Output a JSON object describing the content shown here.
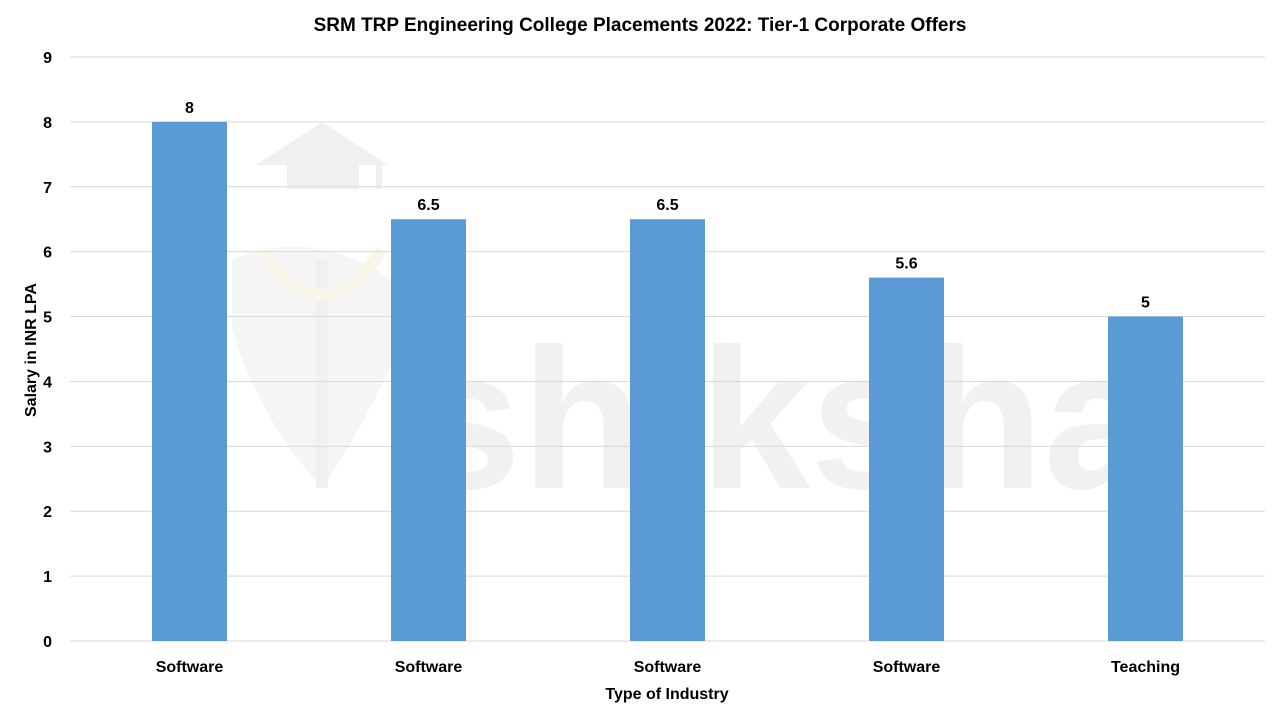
{
  "watermark": {
    "text": "shiksha",
    "icon": "graduation-cap-logo"
  },
  "chart_data": {
    "type": "bar",
    "title": "SRM TRP Engineering College Placements 2022: Tier-1 Corporate Offers",
    "xlabel": "Type of Industry",
    "ylabel": "Salary in INR LPA",
    "categories": [
      "Software",
      "Software",
      "Software",
      "Software",
      "Teaching"
    ],
    "values": [
      8,
      6.5,
      6.5,
      5.6,
      5
    ],
    "value_labels": [
      "8",
      "6.5",
      "6.5",
      "5.6",
      "5"
    ],
    "ylim": [
      0,
      9
    ],
    "yticks": [
      "0",
      "1",
      "2",
      "3",
      "4",
      "5",
      "6",
      "7",
      "8",
      "9"
    ],
    "grid": true,
    "bar_color": "#5b9bd5",
    "legend": "none"
  }
}
